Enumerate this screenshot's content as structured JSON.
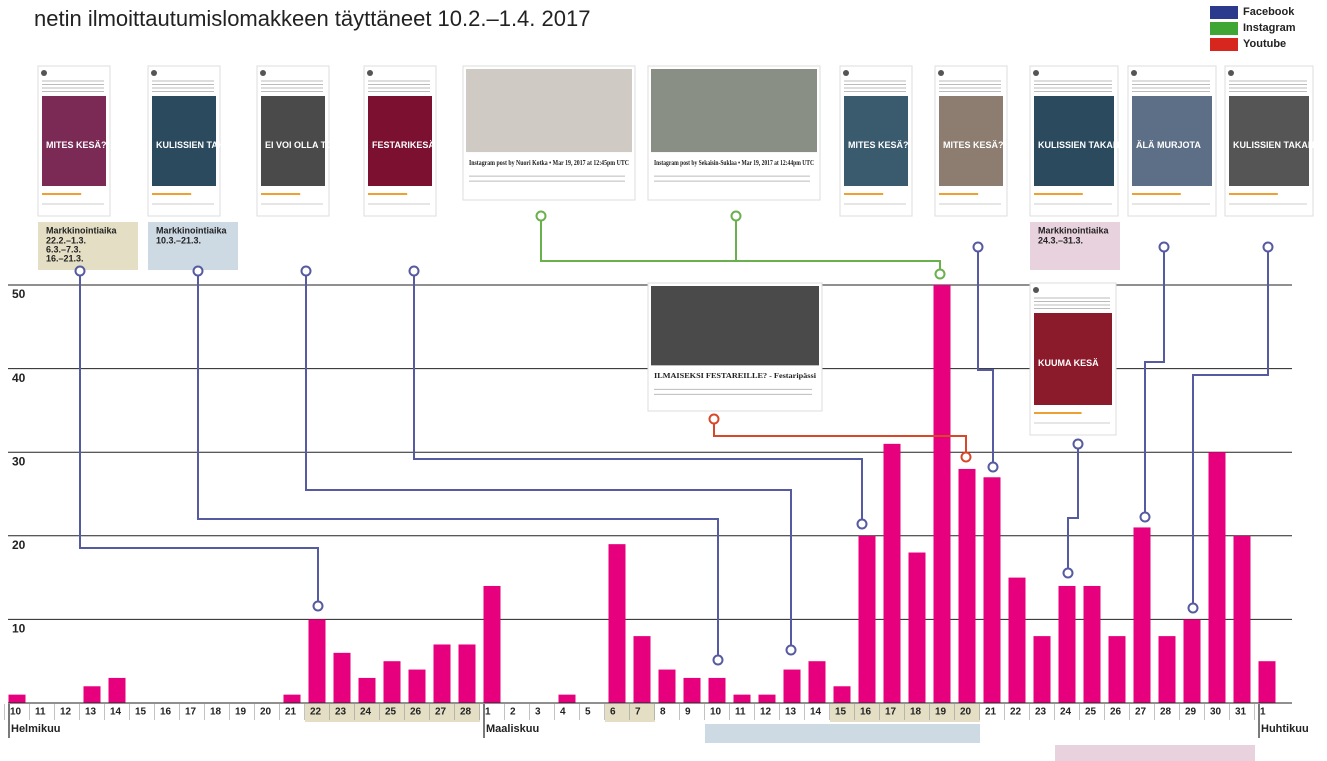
{
  "chart_data": {
    "type": "bar",
    "title": "netin ilmoittautumislomakkeen täyttäneet 10.2.–1.4. 2017",
    "categories": [
      "10",
      "11",
      "12",
      "13",
      "14",
      "15",
      "16",
      "17",
      "18",
      "19",
      "20",
      "21",
      "22",
      "23",
      "24",
      "25",
      "26",
      "27",
      "28",
      "1",
      "2",
      "3",
      "4",
      "5",
      "6",
      "7",
      "8",
      "9",
      "10",
      "11",
      "12",
      "13",
      "14",
      "15",
      "16",
      "17",
      "18",
      "19",
      "20",
      "21",
      "22",
      "23",
      "24",
      "25",
      "26",
      "27",
      "28",
      "29",
      "30",
      "31",
      "1"
    ],
    "values": [
      1,
      0,
      0,
      2,
      3,
      0,
      0,
      0,
      0,
      0,
      0,
      1,
      10,
      6,
      3,
      5,
      4,
      7,
      7,
      14,
      0,
      0,
      1,
      0,
      19,
      8,
      4,
      3,
      3,
      1,
      1,
      4,
      5,
      2,
      20,
      31,
      18,
      50,
      28,
      27,
      15,
      8,
      14,
      14,
      8,
      21,
      8,
      10,
      30,
      20,
      5
    ],
    "color": "#e6007e",
    "ylim": [
      0,
      50
    ],
    "yticks": [
      10,
      20,
      30,
      40,
      50
    ],
    "grid": true,
    "month_labels": [
      "Helmikuu",
      "Maaliskuu",
      "Huhtikuu"
    ],
    "legend": [
      {
        "name": "Facebook",
        "color": "#2b3a8c"
      },
      {
        "name": "Instagram",
        "color": "#3fa535"
      },
      {
        "name": "Youtube",
        "color": "#d7261e"
      }
    ],
    "campaigns": [
      {
        "label": "Markkinointiaika",
        "dates": [
          "22.2.–1.3.",
          "6.3.–7.3.",
          "16.–21.3."
        ]
      },
      {
        "label": "Markkinointiaika",
        "dates": [
          "10.3.–21.3."
        ]
      },
      {
        "label": "Markkinointiaika",
        "dates": [
          "24.3.–31.3."
        ]
      }
    ],
    "ads": [
      {
        "headline": "MITES KESÄ?"
      },
      {
        "headline": "KULISSIEN TAKANA."
      },
      {
        "headline": "EI VOI OLLA TOTTA!"
      },
      {
        "headline": "FESTARIKESÄ"
      },
      {
        "headline": "Instagram post by Nuori Kotka • Mar 19, 2017 at 12:45pm UTC"
      },
      {
        "headline": "Instagram post by Sekaisin-Suklaa • Mar 19, 2017 at 12:44pm UTC"
      },
      {
        "headline": "MITES KESÄ?"
      },
      {
        "headline": "MITES KESÄ?"
      },
      {
        "headline": "KULISSIEN TAKANA."
      },
      {
        "headline": "ÄLÄ MURJOTA"
      },
      {
        "headline": "KULISSIEN TAKANA"
      },
      {
        "headline": "ILMAISEKSI FESTAREILLE? - Festaripässi"
      },
      {
        "headline": "KUUMA KESÄ"
      }
    ]
  }
}
